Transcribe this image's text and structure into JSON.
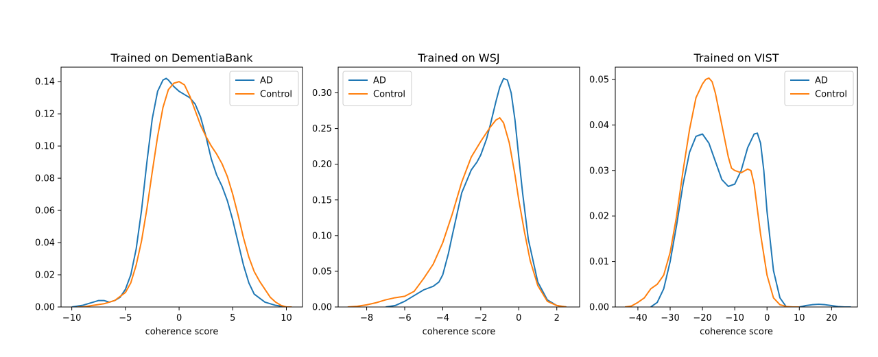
{
  "figure": {
    "colors": {
      "ad": "#1f77b4",
      "control": "#ff7f0e"
    }
  },
  "chart_data": [
    {
      "type": "line",
      "title": "Trained on DementiaBank",
      "xlabel": "coherence score",
      "ylabel": "",
      "xlim": [
        -11,
        11.5
      ],
      "ylim": [
        0,
        0.149
      ],
      "xticks": [
        -10,
        -5,
        0,
        5,
        10
      ],
      "yticks": [
        0.0,
        0.02,
        0.04,
        0.06,
        0.08,
        0.1,
        0.12,
        0.14
      ],
      "ytick_decimals": 2,
      "legend_position": "top-right",
      "grid": false,
      "series": [
        {
          "name": "AD",
          "color": "#1f77b4",
          "x": [
            -10,
            -9,
            -8,
            -7.5,
            -7,
            -6.5,
            -6,
            -5.5,
            -5,
            -4.5,
            -4,
            -3.5,
            -3,
            -2.5,
            -2,
            -1.5,
            -1.2,
            -1,
            -0.5,
            0,
            0.5,
            1,
            1.5,
            2,
            2.5,
            3,
            3.5,
            4,
            4.5,
            5,
            5.5,
            6,
            6.5,
            7,
            8,
            9,
            10
          ],
          "y": [
            0.0,
            0.001,
            0.003,
            0.004,
            0.004,
            0.003,
            0.004,
            0.006,
            0.011,
            0.02,
            0.036,
            0.06,
            0.09,
            0.117,
            0.134,
            0.141,
            0.142,
            0.141,
            0.137,
            0.134,
            0.132,
            0.13,
            0.126,
            0.118,
            0.106,
            0.092,
            0.082,
            0.075,
            0.066,
            0.054,
            0.04,
            0.026,
            0.015,
            0.008,
            0.003,
            0.001,
            0.0
          ]
        },
        {
          "name": "Control",
          "color": "#ff7f0e",
          "x": [
            -9.5,
            -9,
            -8,
            -7,
            -6,
            -5,
            -4.5,
            -4,
            -3.5,
            -3,
            -2.5,
            -2,
            -1.5,
            -1,
            -0.5,
            0,
            0.5,
            1,
            1.5,
            2,
            2.5,
            3,
            3.5,
            4,
            4.5,
            5,
            5.5,
            6,
            6.5,
            7,
            7.5,
            8,
            8.5,
            9,
            9.5,
            10,
            10.5
          ],
          "y": [
            0.0,
            0.0,
            0.001,
            0.002,
            0.004,
            0.009,
            0.015,
            0.026,
            0.041,
            0.061,
            0.084,
            0.106,
            0.124,
            0.135,
            0.139,
            0.14,
            0.138,
            0.131,
            0.122,
            0.113,
            0.106,
            0.1,
            0.095,
            0.089,
            0.081,
            0.07,
            0.057,
            0.043,
            0.031,
            0.022,
            0.016,
            0.011,
            0.006,
            0.003,
            0.001,
            0.0,
            0.0
          ]
        }
      ]
    },
    {
      "type": "line",
      "title": "Trained on WSJ",
      "xlabel": "coherence score",
      "ylabel": "",
      "xlim": [
        -9.5,
        3.2
      ],
      "ylim": [
        0,
        0.336
      ],
      "xticks": [
        -8,
        -6,
        -4,
        -2,
        0,
        2
      ],
      "yticks": [
        0.0,
        0.05,
        0.1,
        0.15,
        0.2,
        0.25,
        0.3
      ],
      "ytick_decimals": 2,
      "legend_position": "top-left",
      "grid": false,
      "series": [
        {
          "name": "AD",
          "color": "#1f77b4",
          "x": [
            -7,
            -6.5,
            -6,
            -5.5,
            -5,
            -4.5,
            -4.2,
            -4,
            -3.7,
            -3.5,
            -3,
            -2.5,
            -2.2,
            -2,
            -1.7,
            -1.5,
            -1.2,
            -1,
            -0.8,
            -0.6,
            -0.4,
            -0.2,
            0,
            0.2,
            0.5,
            1,
            1.5,
            2,
            2.5
          ],
          "y": [
            0.0,
            0.002,
            0.008,
            0.016,
            0.024,
            0.029,
            0.035,
            0.045,
            0.075,
            0.1,
            0.16,
            0.192,
            0.203,
            0.213,
            0.235,
            0.255,
            0.288,
            0.308,
            0.32,
            0.318,
            0.3,
            0.262,
            0.21,
            0.16,
            0.095,
            0.035,
            0.01,
            0.002,
            0.0
          ]
        },
        {
          "name": "Control",
          "color": "#ff7f0e",
          "x": [
            -9,
            -8.5,
            -8,
            -7.5,
            -7,
            -6.5,
            -6,
            -5.5,
            -5,
            -4.5,
            -4,
            -3.5,
            -3,
            -2.5,
            -2,
            -1.5,
            -1.2,
            -1,
            -0.8,
            -0.5,
            -0.2,
            0,
            0.3,
            0.6,
            1,
            1.5,
            2,
            2.5
          ],
          "y": [
            0.0,
            0.001,
            0.003,
            0.006,
            0.01,
            0.013,
            0.015,
            0.022,
            0.04,
            0.06,
            0.09,
            0.13,
            0.175,
            0.21,
            0.232,
            0.252,
            0.262,
            0.265,
            0.258,
            0.23,
            0.185,
            0.15,
            0.105,
            0.065,
            0.03,
            0.008,
            0.002,
            0.0
          ]
        }
      ]
    },
    {
      "type": "line",
      "title": "Trained on VIST",
      "xlabel": "coherence score",
      "ylabel": "",
      "xlim": [
        -47,
        28
      ],
      "ylim": [
        0,
        0.0527
      ],
      "xticks": [
        -40,
        -30,
        -20,
        -10,
        0,
        10,
        20
      ],
      "yticks": [
        0.0,
        0.01,
        0.02,
        0.03,
        0.04,
        0.05
      ],
      "ytick_decimals": 2,
      "legend_position": "top-right",
      "grid": false,
      "series": [
        {
          "name": "AD",
          "color": "#1f77b4",
          "x": [
            -36,
            -34,
            -32,
            -30,
            -28,
            -26,
            -24,
            -22,
            -20,
            -18,
            -16,
            -14,
            -12,
            -10,
            -8,
            -6,
            -4,
            -3,
            -2,
            -1,
            0,
            2,
            4,
            6,
            8,
            10,
            12,
            14,
            16,
            18,
            20,
            22,
            24,
            26
          ],
          "y": [
            0.0,
            0.001,
            0.004,
            0.01,
            0.018,
            0.027,
            0.034,
            0.0375,
            0.038,
            0.036,
            0.032,
            0.028,
            0.0265,
            0.027,
            0.03,
            0.035,
            0.038,
            0.0382,
            0.036,
            0.03,
            0.021,
            0.008,
            0.002,
            0.0,
            0.0,
            0.0,
            0.0003,
            0.0005,
            0.0006,
            0.0005,
            0.0003,
            0.0001,
            0.0,
            0.0
          ]
        },
        {
          "name": "Control",
          "color": "#ff7f0e",
          "x": [
            -44,
            -42,
            -40,
            -38,
            -36,
            -34,
            -32,
            -30,
            -28,
            -26,
            -24,
            -22,
            -20,
            -19,
            -18,
            -17,
            -16,
            -14,
            -12,
            -11,
            -10,
            -8,
            -6,
            -5,
            -4,
            -2,
            0,
            2,
            4,
            6,
            8,
            10
          ],
          "y": [
            0.0,
            0.0002,
            0.001,
            0.002,
            0.004,
            0.005,
            0.007,
            0.012,
            0.02,
            0.03,
            0.039,
            0.046,
            0.049,
            0.05,
            0.0503,
            0.0495,
            0.047,
            0.04,
            0.033,
            0.0305,
            0.03,
            0.0295,
            0.0303,
            0.03,
            0.027,
            0.016,
            0.007,
            0.002,
            0.0005,
            0.0001,
            0.0,
            0.0
          ]
        }
      ]
    }
  ]
}
